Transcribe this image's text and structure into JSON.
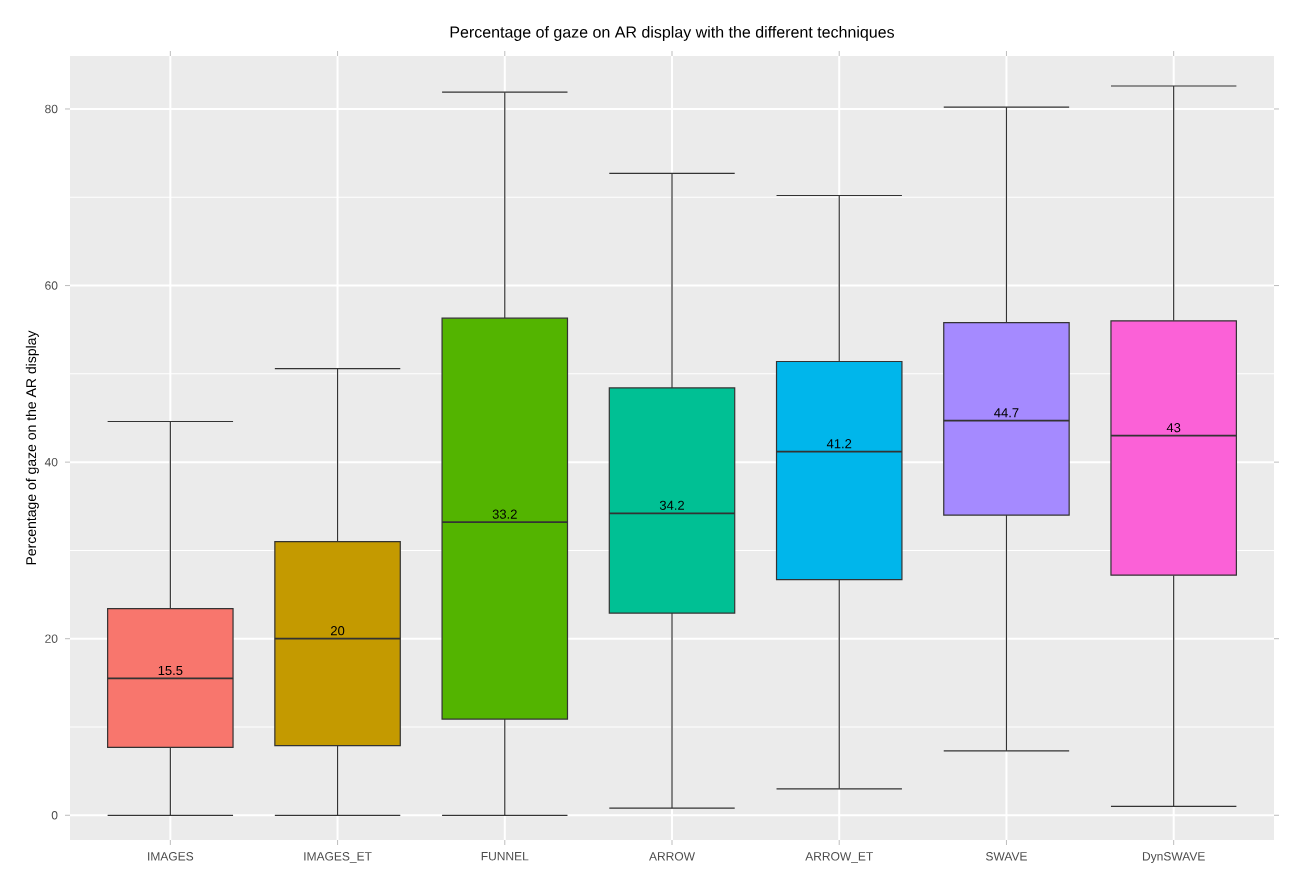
{
  "chart_data": {
    "type": "box",
    "title": "Percentage of gaze on AR display with the different techniques",
    "ylabel": "Percentage of gaze on the AR display",
    "categories": [
      "IMAGES",
      "IMAGES_ET",
      "FUNNEL",
      "ARROW",
      "ARROW_ET",
      "SWAVE",
      "DynSWAVE"
    ],
    "colors": [
      "#f8766d",
      "#c49a00",
      "#53b400",
      "#00c094",
      "#00b6eb",
      "#a58aff",
      "#fb61d7"
    ],
    "boxes": [
      {
        "low": 0,
        "q1": 7.7,
        "median": 15.5,
        "q3": 23.4,
        "high": 44.6
      },
      {
        "low": 0,
        "q1": 7.9,
        "median": 20,
        "q3": 31.0,
        "high": 50.6
      },
      {
        "low": 0,
        "q1": 10.9,
        "median": 33.2,
        "q3": 56.3,
        "high": 81.9
      },
      {
        "low": 0.8,
        "q1": 22.9,
        "median": 34.2,
        "q3": 48.4,
        "high": 72.7
      },
      {
        "low": 3.0,
        "q1": 26.7,
        "median": 41.2,
        "q3": 51.4,
        "high": 70.2
      },
      {
        "low": 7.3,
        "q1": 34.0,
        "median": 44.7,
        "q3": 55.8,
        "high": 80.2
      },
      {
        "low": 1.0,
        "q1": 27.2,
        "median": 43,
        "q3": 56.0,
        "high": 82.6
      }
    ],
    "annotations": [
      {
        "text": "15.5",
        "x": "IMAGES",
        "y": 15.5
      },
      {
        "text": "20",
        "x": "IMAGES_ET",
        "y": 20
      },
      {
        "text": "33.2",
        "x": "FUNNEL",
        "y": 33.2
      },
      {
        "text": "34.2",
        "x": "ARROW",
        "y": 34.2
      },
      {
        "text": "41.2",
        "x": "ARROW_ET",
        "y": 41.2
      },
      {
        "text": "44.7",
        "x": "SWAVE",
        "y": 44.7
      },
      {
        "text": "43",
        "x": "DynSWAVE",
        "y": 43
      }
    ],
    "ylim": [
      -2.8,
      86
    ],
    "yticks": [
      0,
      20,
      40,
      60,
      80
    ],
    "grid": true
  }
}
